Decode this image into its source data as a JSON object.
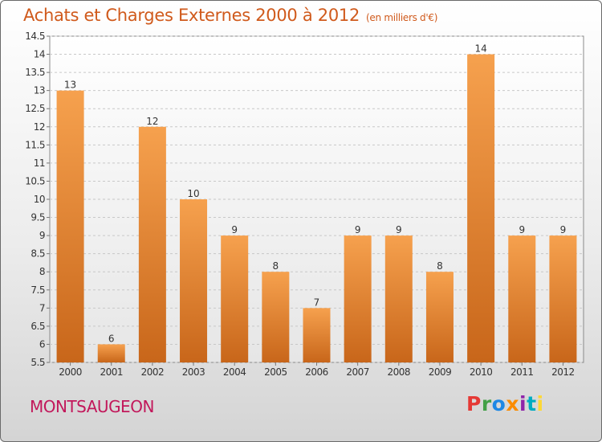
{
  "header": {
    "title": "Achats et Charges Externes 2000 à 2012",
    "unit": "(en milliers d'€)"
  },
  "footer": {
    "city": "MONTSAUGEON",
    "logo_letters": [
      "P",
      "r",
      "o",
      "x",
      "i",
      "t",
      "i"
    ]
  },
  "colors": {
    "bar_top": "#f6a14e",
    "bar_bottom": "#c8661a",
    "title": "#d05a1c",
    "city": "#c2185b"
  },
  "chart_data": {
    "type": "bar",
    "title": "Achats et Charges Externes 2000 à 2012",
    "subtitle": "(en milliers d'€)",
    "categories": [
      "2000",
      "2001",
      "2002",
      "2003",
      "2004",
      "2005",
      "2006",
      "2007",
      "2008",
      "2009",
      "2010",
      "2011",
      "2012"
    ],
    "values": [
      13,
      6,
      12,
      10,
      9,
      8,
      7,
      9,
      9,
      8,
      14,
      9,
      9
    ],
    "ylim": [
      5.5,
      14.5
    ],
    "yticks": [
      "5.5",
      "6",
      "6.5",
      "7",
      "7.5",
      "8",
      "8.5",
      "9",
      "9.5",
      "10",
      "10.5",
      "11",
      "11.5",
      "12",
      "12.5",
      "13",
      "13.5",
      "14",
      "14.5"
    ],
    "grid": true,
    "legend": "none"
  }
}
